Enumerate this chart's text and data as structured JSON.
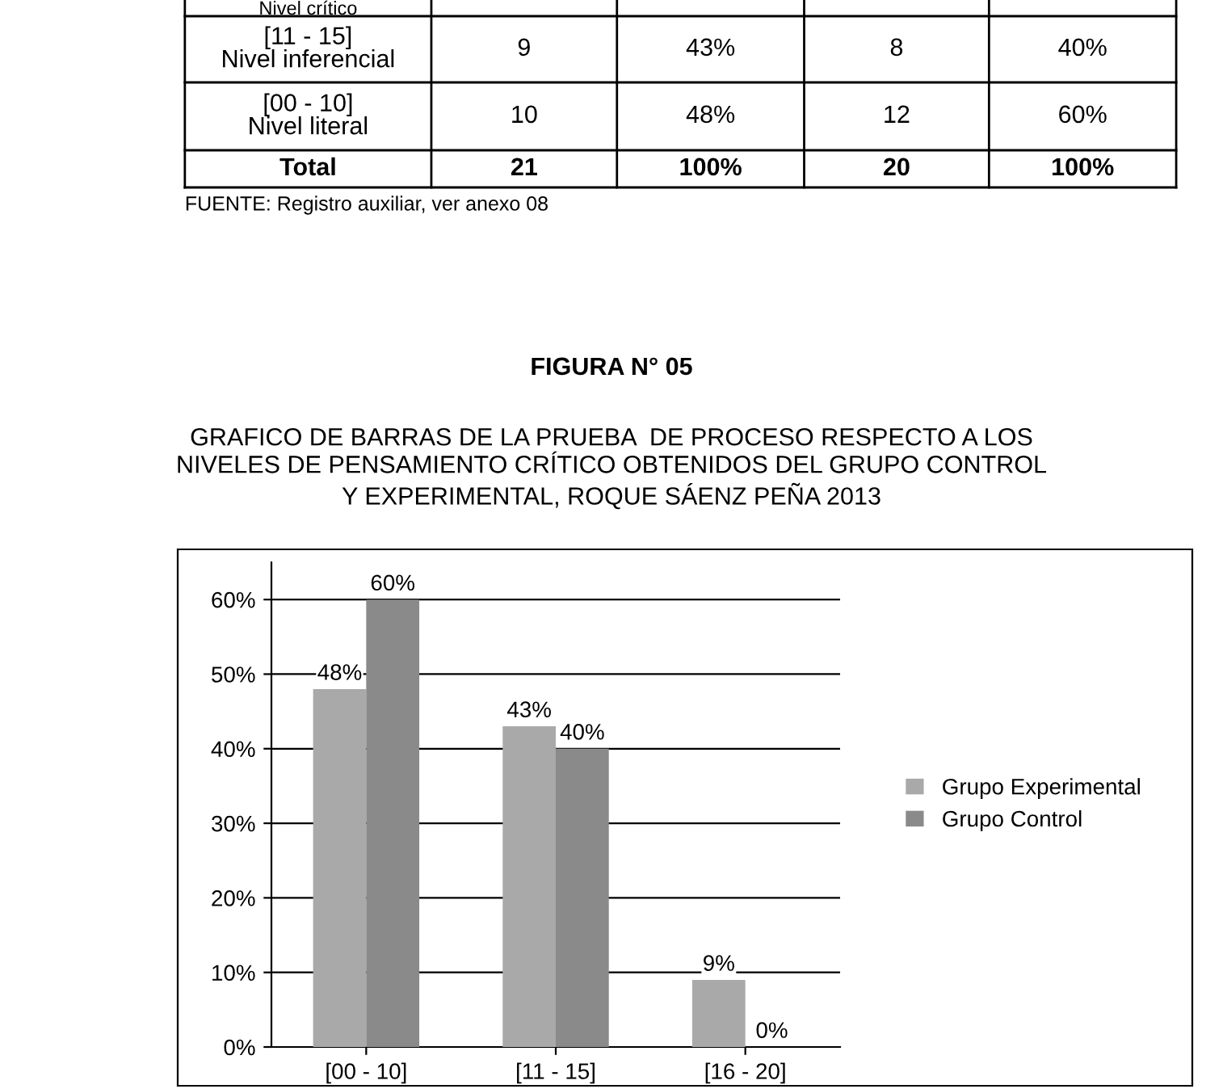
{
  "chart_data": {
    "type": "bar",
    "title": "FIGURA N° 05",
    "subtitle": "GRAFICO DE BARRAS DE LA PRUEBA  DE PROCESO RESPECTO A LOS\nNIVELES DE PENSAMIENTO CRÍTICO OBTENIDOS DEL GRUPO CONTROL\nY EXPERIMENTAL, ROQUE SÁENZ PEÑA 2013",
    "categories": [
      "[00 - 10]",
      "[11 - 15]",
      "[16 - 20]"
    ],
    "series": [
      {
        "name": "Grupo Experimental",
        "color": "#a9a9a9",
        "values": [
          48,
          43,
          9
        ]
      },
      {
        "name": "Grupo Control",
        "color": "#8a8a8a",
        "values": [
          60,
          40,
          0
        ]
      }
    ],
    "value_labels": [
      [
        "48%",
        "43%",
        "9%"
      ],
      [
        "60%",
        "40%",
        "0%"
      ]
    ],
    "ylim": [
      0,
      65
    ],
    "yticks": [
      {
        "value": 0,
        "label": "0%"
      },
      {
        "value": 10,
        "label": "10%"
      },
      {
        "value": 20,
        "label": "20%"
      },
      {
        "value": 30,
        "label": "30%"
      },
      {
        "value": 40,
        "label": "40%"
      },
      {
        "value": 50,
        "label": "50%"
      },
      {
        "value": 60,
        "label": "60%"
      }
    ],
    "grid": "y",
    "legend": "right",
    "annotations": [
      "Nivel crítico",
      "[11 - 15]\nNivel inferencial",
      "9",
      "43%",
      "8",
      "40%",
      "[00 - 10]\nNivel literal",
      "10",
      "48%",
      "12",
      "60%",
      "Total",
      "21",
      "100%",
      "20",
      "100%",
      "FUENTE: Registro auxiliar, ver anexo 08"
    ]
  }
}
